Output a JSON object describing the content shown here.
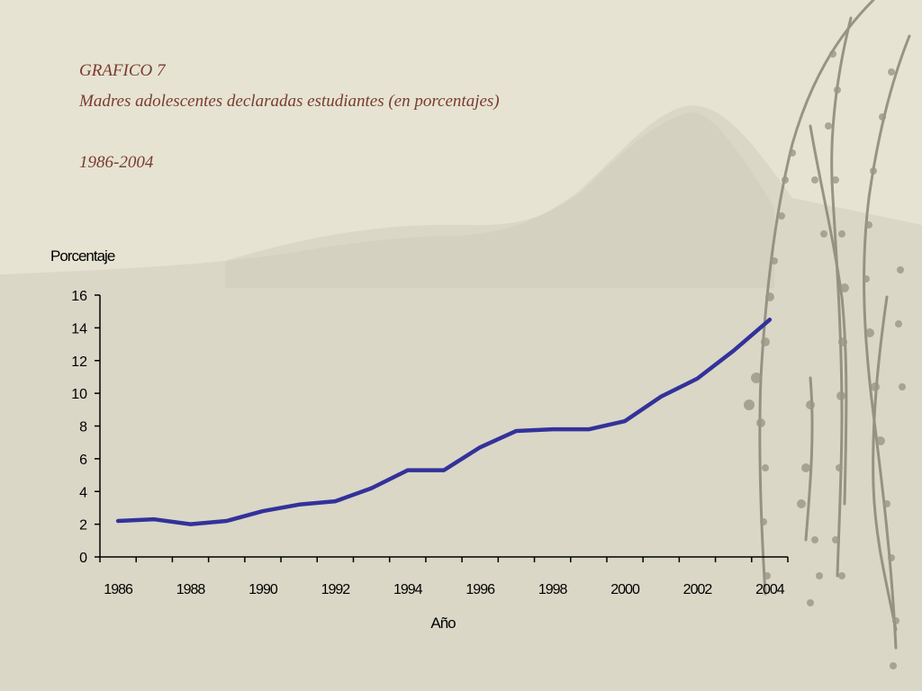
{
  "header": {
    "label": "GRAFICO 7",
    "title": "Madres adolescentes declaradas estudiantes (en porcentajes)",
    "period": "1986-2004"
  },
  "colors": {
    "line": "#33329a",
    "text_heading": "#7a3b2e"
  },
  "chart_data": {
    "type": "line",
    "title": "Madres adolescentes declaradas estudiantes (en porcentajes)",
    "subtitle": "1986-2004",
    "xlabel": "Año",
    "ylabel": "Porcentaje",
    "xlim": [
      1986,
      2004
    ],
    "ylim": [
      0,
      16
    ],
    "yticks": [
      "0",
      "2",
      "4",
      "6",
      "8",
      "10",
      "12",
      "14",
      "16"
    ],
    "xticks": [
      "1986",
      "1988",
      "1990",
      "1992",
      "1994",
      "1996",
      "1998",
      "2000",
      "2002",
      "2004"
    ],
    "grid": false,
    "x": [
      1986,
      1987,
      1988,
      1989,
      1990,
      1991,
      1992,
      1993,
      1994,
      1995,
      1996,
      1997,
      1998,
      1999,
      2000,
      2001,
      2002,
      2003,
      2004
    ],
    "values": [
      2.2,
      2.3,
      2.0,
      2.2,
      2.8,
      3.2,
      3.4,
      4.2,
      5.3,
      5.3,
      6.7,
      7.7,
      7.8,
      7.8,
      8.3,
      9.8,
      10.9,
      12.6,
      14.5
    ]
  }
}
